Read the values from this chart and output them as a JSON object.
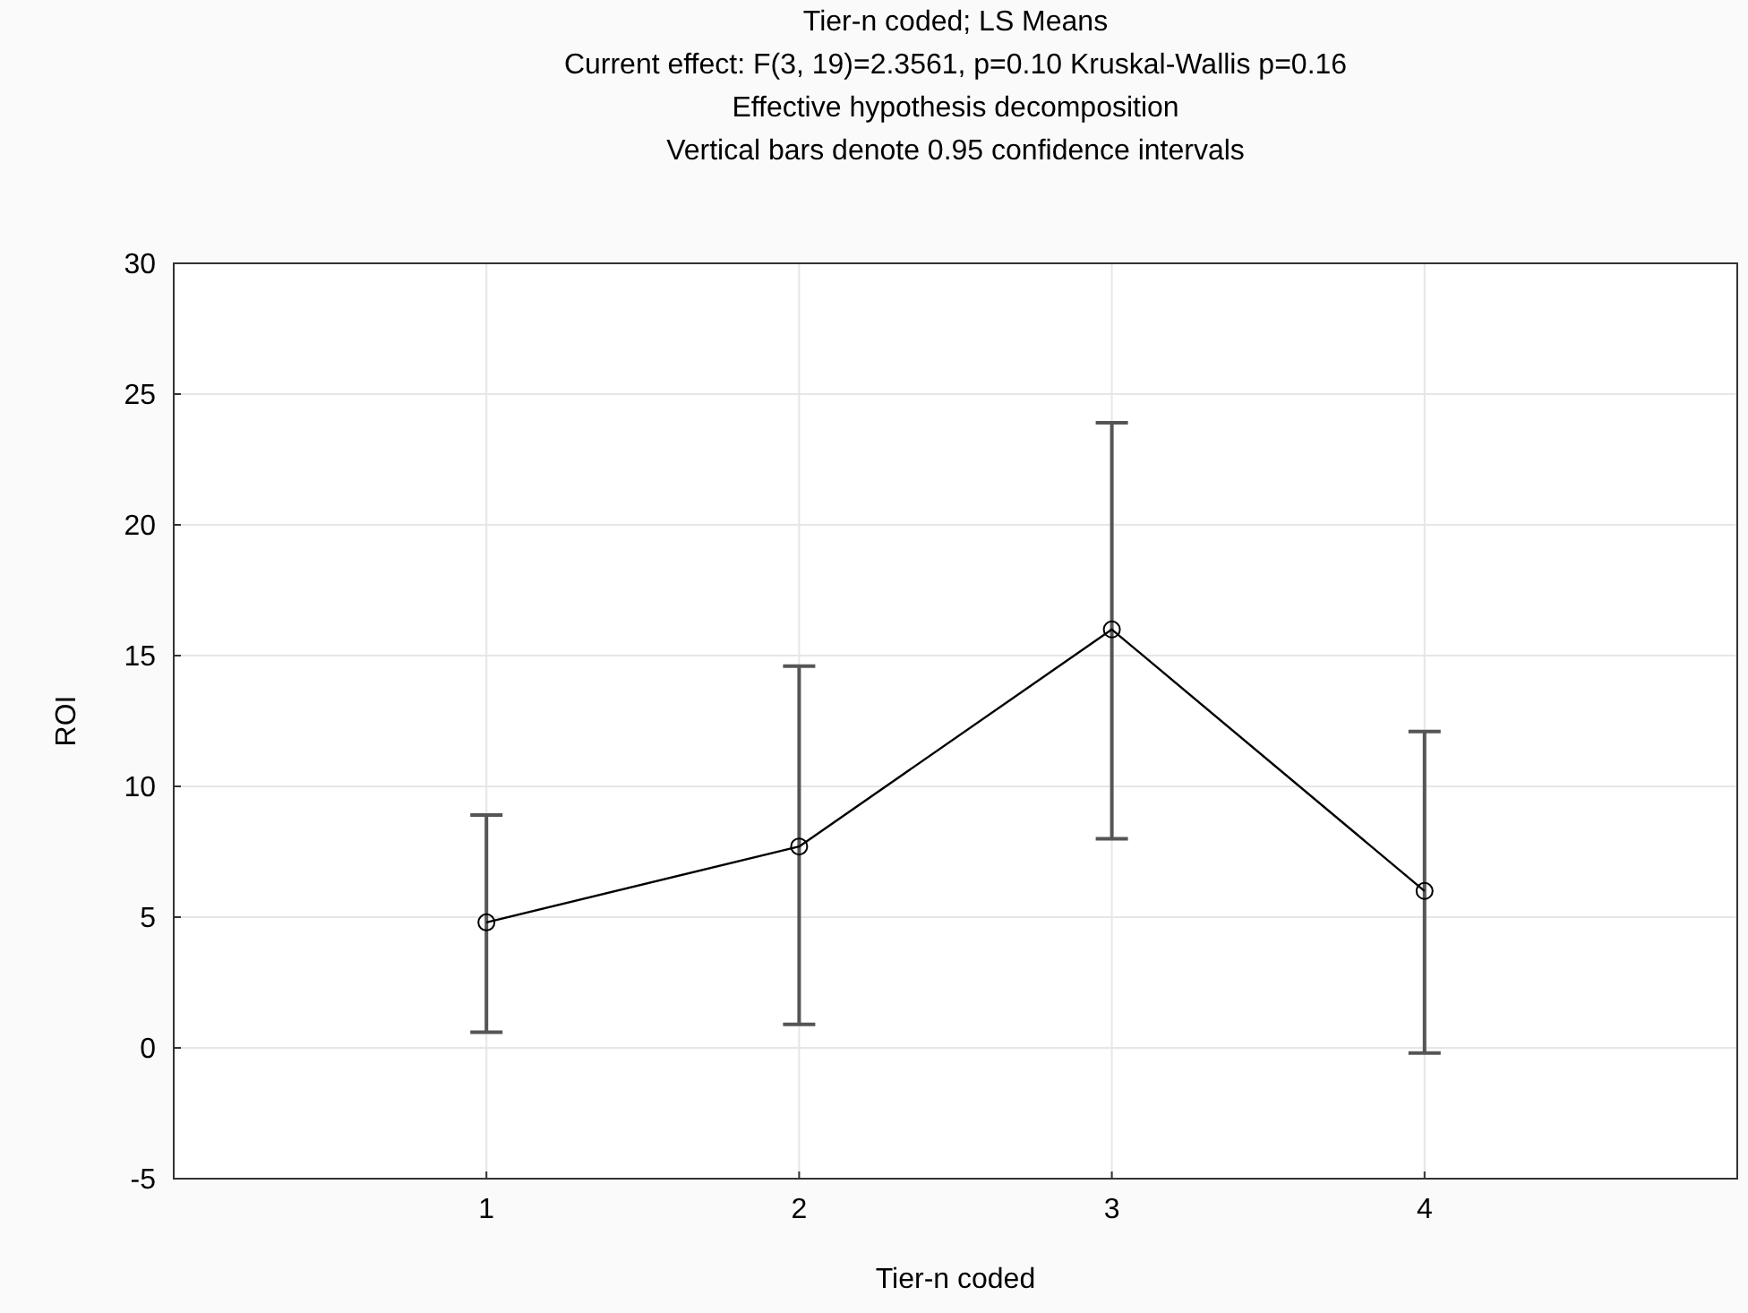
{
  "chart_data": {
    "type": "line",
    "title": "Tier-n coded; LS Means",
    "subtitle": "Current effect: F(3, 19)=2.3561, p=0.10 Kruskal-Wallis p=0.16",
    "annotations": [
      "Effective hypothesis decomposition",
      "Vertical bars denote 0.95 confidence intervals"
    ],
    "xlabel": "Tier-n coded",
    "ylabel": "ROI",
    "x": [
      1,
      2,
      3,
      4
    ],
    "values": [
      4.8,
      7.7,
      16.0,
      6.0
    ],
    "color": "#000000",
    "errors": [
      [
        0.6,
        8.9
      ],
      [
        0.9,
        14.6
      ],
      [
        8.0,
        23.9
      ],
      [
        -0.2,
        12.1
      ]
    ],
    "xlim": [
      0,
      5
    ],
    "xticks": [
      1,
      2,
      3,
      4
    ],
    "ylim": [
      -5,
      30
    ],
    "yticks": [
      -5,
      0,
      5,
      10,
      15,
      20,
      25,
      30
    ],
    "grid": true,
    "marker": "circle",
    "line_style": "solid"
  }
}
